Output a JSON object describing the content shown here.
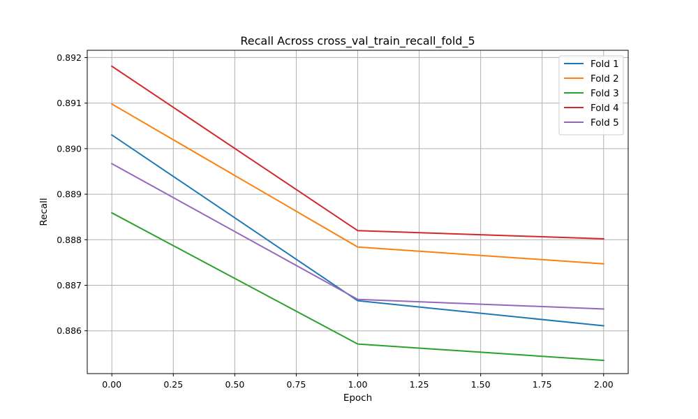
{
  "chart_data": {
    "type": "line",
    "title": "Recall Across cross_val_train_recall_fold_5",
    "xlabel": "Epoch",
    "ylabel": "Recall",
    "x": [
      0,
      1,
      2
    ],
    "xlim": [
      -0.1,
      2.1
    ],
    "ylim": [
      0.88506,
      0.89216
    ],
    "xticks": [
      0.0,
      0.25,
      0.5,
      0.75,
      1.0,
      1.25,
      1.5,
      1.75,
      2.0
    ],
    "xtick_labels": [
      "0.00",
      "0.25",
      "0.50",
      "0.75",
      "1.00",
      "1.25",
      "1.50",
      "1.75",
      "2.00"
    ],
    "yticks": [
      0.886,
      0.887,
      0.888,
      0.889,
      0.89,
      0.891,
      0.892
    ],
    "ytick_labels": [
      "0.886",
      "0.887",
      "0.888",
      "0.889",
      "0.890",
      "0.891",
      "0.892"
    ],
    "grid": true,
    "legend_position": "top-right",
    "series": [
      {
        "name": "Fold 1",
        "color": "#1f77b4",
        "values": [
          0.8903,
          0.88666,
          0.88611
        ]
      },
      {
        "name": "Fold 2",
        "color": "#ff7f0e",
        "values": [
          0.89098,
          0.88784,
          0.88747
        ]
      },
      {
        "name": "Fold 3",
        "color": "#2ca02c",
        "values": [
          0.88859,
          0.88571,
          0.88535
        ]
      },
      {
        "name": "Fold 4",
        "color": "#d62728",
        "values": [
          0.89181,
          0.8882,
          0.88802
        ]
      },
      {
        "name": "Fold 5",
        "color": "#9467bd",
        "values": [
          0.88967,
          0.88669,
          0.88648
        ]
      }
    ]
  }
}
